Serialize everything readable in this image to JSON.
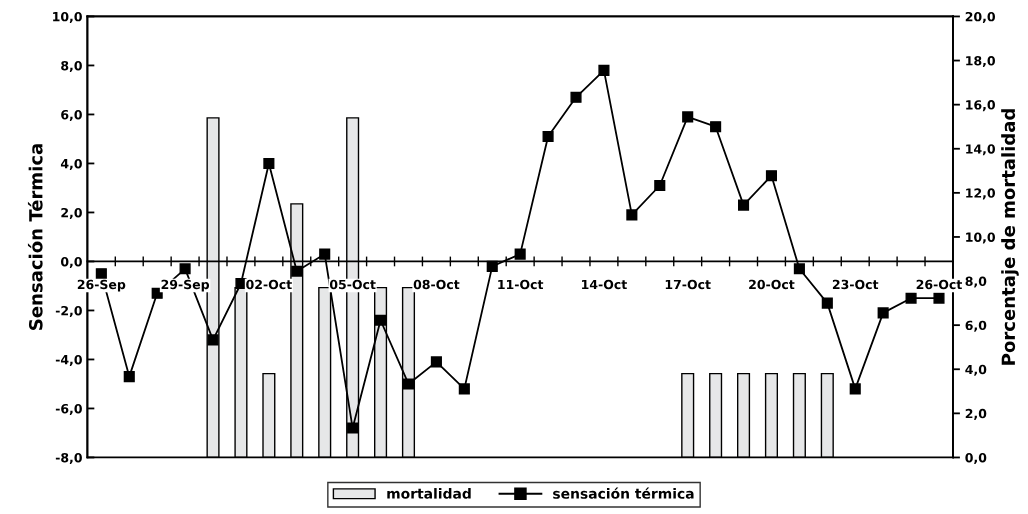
{
  "chart_data": {
    "type": "line",
    "ylabel": "Sensación Térmica",
    "y2label": "Porcentaje de mortalidad",
    "categories": [
      "26-Sep",
      null,
      null,
      "29-Sep",
      null,
      null,
      "02-Oct",
      null,
      null,
      "05-Oct",
      null,
      null,
      "08-Oct",
      null,
      null,
      "11-Oct",
      null,
      null,
      "14-Oct",
      null,
      null,
      "17-Oct",
      null,
      null,
      "20-Oct",
      null,
      null,
      "23-Oct",
      null,
      null,
      "26-Oct"
    ],
    "series": [
      {
        "name": "mortalidad",
        "type": "bar",
        "axis": "y2",
        "color": "#e6e7e8",
        "values": [
          null,
          null,
          null,
          null,
          15.4,
          7.7,
          3.8,
          11.5,
          7.7,
          15.4,
          7.7,
          7.7,
          null,
          null,
          null,
          null,
          null,
          null,
          null,
          null,
          null,
          3.8,
          3.8,
          3.8,
          3.8,
          3.8,
          3.8,
          null,
          null,
          null,
          null
        ]
      },
      {
        "name": "sensación térmica",
        "color": "#000000",
        "marker": "square",
        "values": [
          -0.5,
          -4.7,
          -1.3,
          -0.3,
          -3.2,
          -0.9,
          4.0,
          -0.4,
          0.3,
          -6.8,
          -2.4,
          -5.0,
          -4.1,
          -5.2,
          -0.2,
          0.3,
          5.1,
          6.7,
          7.8,
          1.9,
          3.1,
          5.9,
          5.5,
          2.3,
          3.5,
          -0.3,
          -1.7,
          -5.2,
          -2.1,
          -1.5,
          -1.5
        ]
      }
    ],
    "ylim": [
      -8,
      10
    ],
    "yticks": [
      {
        "value": -8,
        "label": "-8,0"
      },
      {
        "value": -6,
        "label": "-6,0"
      },
      {
        "value": -4,
        "label": "-4,0"
      },
      {
        "value": -2,
        "label": "-2,0"
      },
      {
        "value": 0,
        "label": "0,0"
      },
      {
        "value": 2,
        "label": "2,0"
      },
      {
        "value": 4,
        "label": "4,0"
      },
      {
        "value": 6,
        "label": "6,0"
      },
      {
        "value": 8,
        "label": "8,0"
      },
      {
        "value": 10,
        "label": "10,0"
      }
    ],
    "y2lim": [
      0,
      20
    ],
    "y2ticks": [
      {
        "value": 0,
        "label": "0,0"
      },
      {
        "value": 2,
        "label": "2,0"
      },
      {
        "value": 4,
        "label": "4,0"
      },
      {
        "value": 6,
        "label": "6,0"
      },
      {
        "value": 8,
        "label": "8,0"
      },
      {
        "value": 10,
        "label": "10,0"
      },
      {
        "value": 12,
        "label": "12,0"
      },
      {
        "value": 14,
        "label": "14,0"
      },
      {
        "value": 16,
        "label": "16,0"
      },
      {
        "value": 18,
        "label": "18,0"
      },
      {
        "value": 20,
        "label": "20,0"
      }
    ],
    "grid": false,
    "legend": "bottom"
  }
}
